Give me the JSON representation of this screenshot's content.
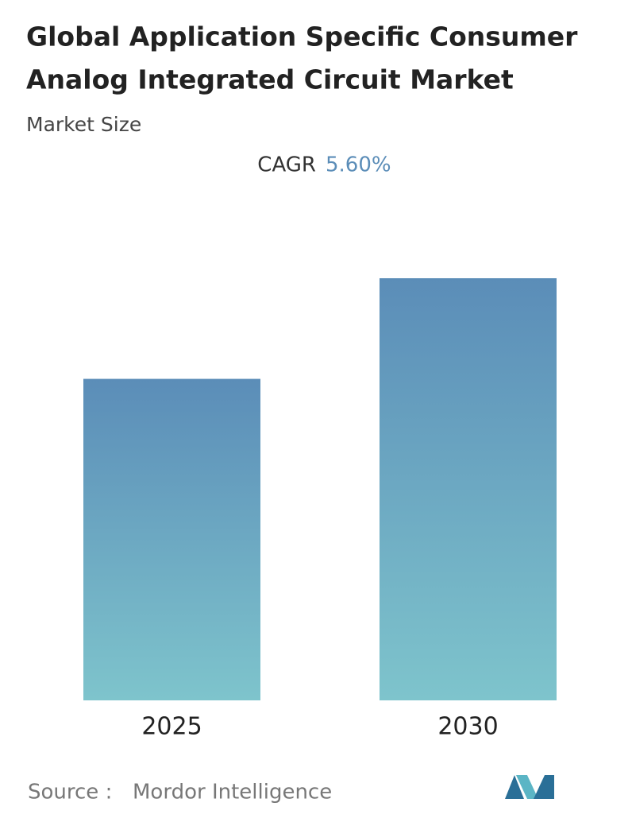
{
  "chart_data": {
    "type": "bar",
    "title_lines": [
      "Global Application Specific Consumer",
      "Analog Integrated Circuit Market"
    ],
    "subtitle": "Market Size",
    "cagr_label": "CAGR",
    "cagr_value": "5.60%",
    "categories": [
      "2025",
      "2030"
    ],
    "values": [
      100,
      131.3
    ],
    "source_label": "Source :",
    "source": "Mordor Intelligence"
  }
}
